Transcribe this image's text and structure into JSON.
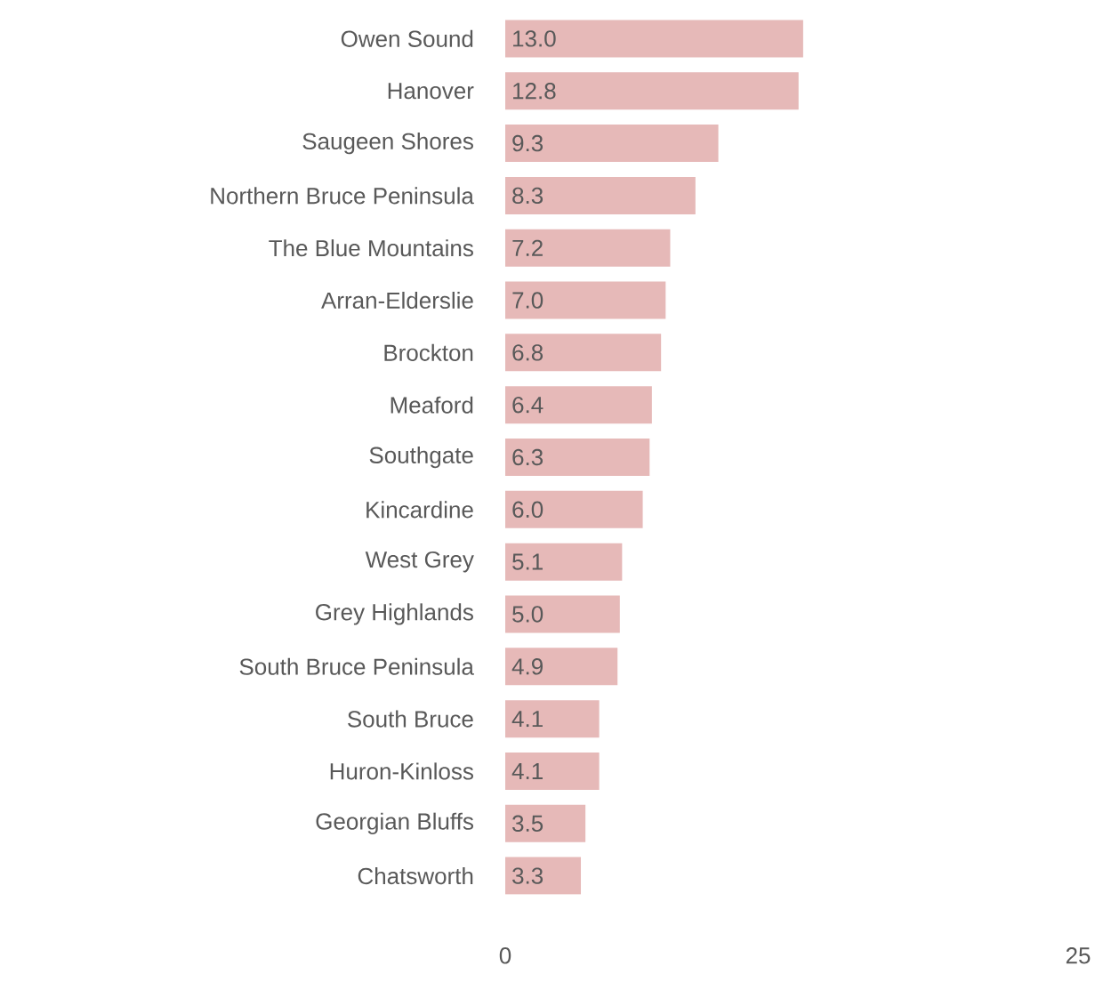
{
  "chart_data": {
    "type": "bar",
    "orientation": "horizontal",
    "categories": [
      "Owen Sound",
      "Hanover",
      "Saugeen Shores",
      "Northern Bruce Peninsula",
      "The Blue Mountains",
      "Arran-Elderslie",
      "Brockton",
      "Meaford",
      "Southgate",
      "Kincardine",
      "West Grey",
      "Grey Highlands",
      "South Bruce Peninsula",
      "South Bruce",
      "Huron-Kinloss",
      "Georgian Bluffs",
      "Chatsworth"
    ],
    "values": [
      13.0,
      12.8,
      9.3,
      8.3,
      7.2,
      7.0,
      6.8,
      6.4,
      6.3,
      6.0,
      5.1,
      5.0,
      4.9,
      4.1,
      4.1,
      3.5,
      3.3
    ],
    "value_labels": [
      "13.0",
      "12.8",
      "9.3",
      "8.3",
      "7.2",
      "7.0",
      "6.8",
      "6.4",
      "6.3",
      "6.0",
      "5.1",
      "5.0",
      "4.9",
      "4.1",
      "4.1",
      "3.5",
      "3.3"
    ],
    "color": "#e6b9b8",
    "xlim": [
      0,
      25
    ],
    "xticks": [
      0,
      25
    ]
  }
}
